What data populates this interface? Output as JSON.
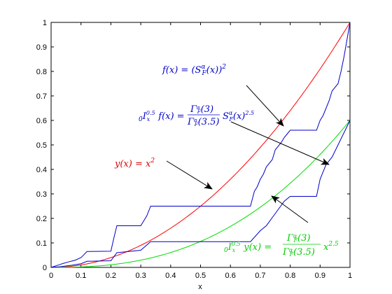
{
  "chart_data": {
    "type": "line",
    "xlabel": "x",
    "ylabel": "",
    "xlim": [
      0,
      1
    ],
    "ylim": [
      0,
      1
    ],
    "grid": false,
    "xticks": [
      "0",
      "0.1",
      "0.2",
      "0.3",
      "0.4",
      "0.5",
      "0.6",
      "0.7",
      "0.8",
      "0.9",
      "1"
    ],
    "yticks": [
      "0",
      "0.1",
      "0.2",
      "0.3",
      "0.4",
      "0.5",
      "0.6",
      "0.7",
      "0.8",
      "0.9",
      "1"
    ],
    "colors": {
      "red": "#ff0000",
      "green": "#00dd00",
      "blue": "#0000cc",
      "axis": "#000000"
    },
    "series": [
      {
        "key": "red",
        "formula": "x^2",
        "x": [
          0,
          0.1,
          0.2,
          0.3,
          0.4,
          0.5,
          0.6,
          0.7,
          0.8,
          0.9,
          1
        ],
        "y": [
          0,
          0.01,
          0.04,
          0.09,
          0.16,
          0.25,
          0.36,
          0.49,
          0.64,
          0.81,
          1
        ]
      },
      {
        "key": "green",
        "formula": "0.6 x^2.5",
        "x": [
          0,
          0.1,
          0.2,
          0.3,
          0.4,
          0.5,
          0.6,
          0.7,
          0.8,
          0.9,
          1
        ],
        "y": [
          0,
          0.002,
          0.011,
          0.03,
          0.061,
          0.106,
          0.167,
          0.246,
          0.343,
          0.461,
          0.6
        ]
      },
      {
        "key": "blue_upper",
        "x": [
          0,
          0.01,
          0.02,
          0.03,
          0.04,
          0.06,
          0.07,
          0.08,
          0.1,
          0.11,
          0.12,
          0.2,
          0.21,
          0.22,
          0.3,
          0.31,
          0.32,
          0.333,
          0.667,
          0.68,
          0.69,
          0.7,
          0.71,
          0.72,
          0.74,
          0.75,
          0.77,
          0.78,
          0.79,
          0.8,
          0.888,
          0.9,
          0.91,
          0.92,
          0.93,
          0.94,
          0.96,
          0.97,
          0.98,
          0.99,
          1
        ],
        "y": [
          0,
          0.004,
          0.008,
          0.012,
          0.016,
          0.023,
          0.026,
          0.029,
          0.04,
          0.052,
          0.065,
          0.066,
          0.12,
          0.17,
          0.17,
          0.19,
          0.21,
          0.25,
          0.25,
          0.31,
          0.33,
          0.36,
          0.38,
          0.41,
          0.44,
          0.48,
          0.51,
          0.53,
          0.545,
          0.56,
          0.56,
          0.6,
          0.62,
          0.65,
          0.68,
          0.72,
          0.75,
          0.8,
          0.86,
          0.93,
          1
        ]
      },
      {
        "key": "blue_lower",
        "x": [
          0,
          0.03,
          0.07,
          0.1,
          0.12,
          0.2,
          0.22,
          0.3,
          0.333,
          0.667,
          0.7,
          0.72,
          0.75,
          0.78,
          0.8,
          0.888,
          0.9,
          0.92,
          0.94,
          0.96,
          0.98,
          1
        ],
        "y": [
          0,
          0.003,
          0.009,
          0.015,
          0.025,
          0.027,
          0.06,
          0.07,
          0.105,
          0.105,
          0.15,
          0.17,
          0.22,
          0.27,
          0.29,
          0.29,
          0.36,
          0.42,
          0.45,
          0.5,
          0.55,
          0.6
        ]
      }
    ]
  },
  "annotations": {
    "f_label": "f(x) = (SᵅBF(x))²",
    "f_label_text": "f(x) = (S",
    "integral_text": "₀𝓘ₓ⁰·⁵ f(x) =",
    "y_label": "y(x) = x²",
    "y_label_text": "y(x) = x",
    "green_label_text": "₀𝓘ₓ⁰·⁵ y(x) ="
  }
}
